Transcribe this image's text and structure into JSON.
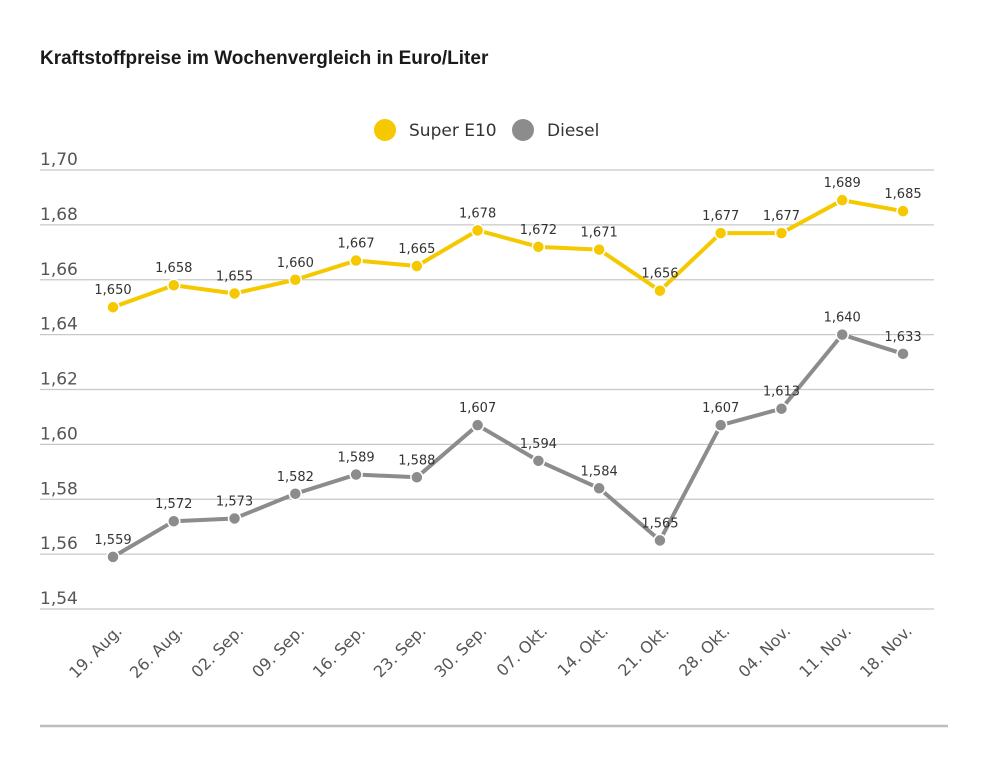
{
  "chart_data": {
    "type": "line",
    "title": "Kraftstoffpreise im Wochenvergleich in Euro/Liter",
    "xlabel": "",
    "ylabel": "",
    "ylim": [
      1.54,
      1.7
    ],
    "yticks": [
      1.54,
      1.56,
      1.58,
      1.6,
      1.62,
      1.64,
      1.66,
      1.68,
      1.7
    ],
    "ytick_labels": [
      "1,54",
      "1,56",
      "1,58",
      "1,60",
      "1,62",
      "1,64",
      "1,66",
      "1,68",
      "1,70"
    ],
    "grid": true,
    "legend_position": "top-center",
    "categories": [
      "19. Aug.",
      "26. Aug.",
      "02. Sep.",
      "09. Sep.",
      "16. Sep.",
      "23. Sep.",
      "30. Sep.",
      "07. Okt.",
      "14. Okt.",
      "21. Okt.",
      "28. Okt.",
      "04. Nov.",
      "11. Nov.",
      "18. Nov."
    ],
    "series": [
      {
        "name": "Super E10",
        "color": "#f5c800",
        "values": [
          1.65,
          1.658,
          1.655,
          1.66,
          1.667,
          1.665,
          1.678,
          1.672,
          1.671,
          1.656,
          1.677,
          1.677,
          1.689,
          1.685
        ],
        "labels": [
          "1,650",
          "1,658",
          "1,655",
          "1,660",
          "1,667",
          "1,665",
          "1,678",
          "1,672",
          "1,671",
          "1,656",
          "1,677",
          "1,677",
          "1,689",
          "1,685"
        ]
      },
      {
        "name": "Diesel",
        "color": "#8c8c8c",
        "values": [
          1.559,
          1.572,
          1.573,
          1.582,
          1.589,
          1.588,
          1.607,
          1.594,
          1.584,
          1.565,
          1.607,
          1.613,
          1.64,
          1.633
        ],
        "labels": [
          "1,559",
          "1,572",
          "1,573",
          "1,582",
          "1,589",
          "1,588",
          "1,607",
          "1,594",
          "1,584",
          "1,565",
          "1,607",
          "1,613",
          "1,640",
          "1,633"
        ]
      }
    ]
  }
}
